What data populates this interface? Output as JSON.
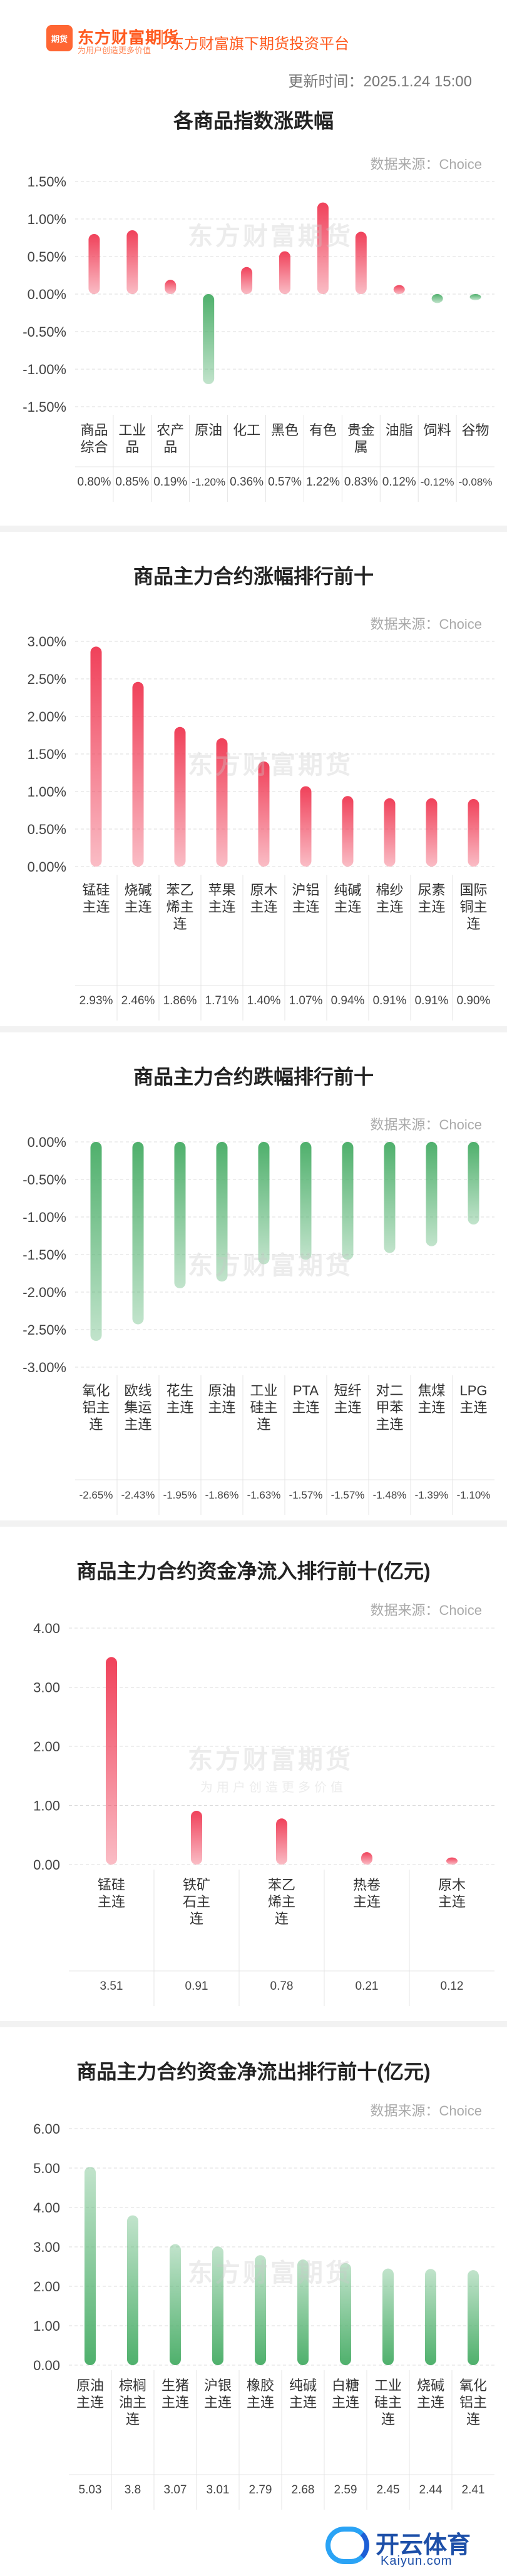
{
  "header": {
    "logo_icon": "东方财富期货 logo",
    "brand_name": "东方财富期货",
    "brand_slogan": "为用户创造更多价值",
    "platform": "东方财富旗下期货投资平台",
    "updated": "更新时间：2025.1.24 15:00"
  },
  "watermark": {
    "main": "东方财富期货",
    "sub": "为用户创造更多价值"
  },
  "footer_logo": {
    "name": "开云体育",
    "domain": "Kaiyun.com",
    "icon": "kaiyun-logo-icon"
  },
  "colors": {
    "up": "#f0415a",
    "down": "#4fb06c",
    "accent": "#ff5a1f"
  },
  "chart_data": [
    {
      "type": "bar",
      "title": "各商品指数涨跌幅",
      "source": "数据来源：Choice",
      "categories": [
        "商品综合",
        "工业品",
        "农产品",
        "原油",
        "化工",
        "黑色",
        "有色",
        "贵金属",
        "油脂",
        "饲料",
        "谷物"
      ],
      "category_lines": [
        [
          "商品",
          "综合"
        ],
        [
          "工业",
          "品"
        ],
        [
          "农产",
          "品"
        ],
        [
          "原油"
        ],
        [
          "化工"
        ],
        [
          "黑色"
        ],
        [
          "有色"
        ],
        [
          "贵金",
          "属"
        ],
        [
          "油脂"
        ],
        [
          "饲料"
        ],
        [
          "谷物"
        ]
      ],
      "values": [
        0.8,
        0.85,
        0.19,
        -1.2,
        0.36,
        0.57,
        1.22,
        0.83,
        0.12,
        -0.12,
        -0.08
      ],
      "value_labels": [
        "0.80%",
        "0.85%",
        "0.19%",
        "-1.20%",
        "0.36%",
        "0.57%",
        "1.22%",
        "0.83%",
        "0.12%",
        "-0.12%",
        "-0.08%"
      ],
      "ylim": [
        -1.5,
        1.5
      ],
      "yticks": [
        1.5,
        1.0,
        0.5,
        0.0,
        -0.5,
        -1.0,
        -1.5
      ],
      "ytick_labels": [
        "1.50%",
        "1.00%",
        "0.50%",
        "0.00%",
        "-0.50%",
        "-1.00%",
        "-1.50%"
      ],
      "grid": true
    },
    {
      "type": "bar",
      "title": "商品主力合约涨幅排行前十",
      "source": "数据来源：Choice",
      "categories": [
        "锰硅主连",
        "烧碱主连",
        "苯乙烯主连",
        "苹果主连",
        "原木主连",
        "沪铝主连",
        "纯碱主连",
        "棉纱主连",
        "尿素主连",
        "国际铜主连"
      ],
      "category_lines": [
        [
          "锰硅",
          "主连"
        ],
        [
          "烧碱",
          "主连"
        ],
        [
          "苯乙",
          "烯主",
          "连"
        ],
        [
          "苹果",
          "主连"
        ],
        [
          "原木",
          "主连"
        ],
        [
          "沪铝",
          "主连"
        ],
        [
          "纯碱",
          "主连"
        ],
        [
          "棉纱",
          "主连"
        ],
        [
          "尿素",
          "主连"
        ],
        [
          "国际",
          "铜主",
          "连"
        ]
      ],
      "values": [
        2.93,
        2.46,
        1.86,
        1.71,
        1.4,
        1.07,
        0.94,
        0.91,
        0.91,
        0.9
      ],
      "value_labels": [
        "2.93%",
        "2.46%",
        "1.86%",
        "1.71%",
        "1.40%",
        "1.07%",
        "0.94%",
        "0.91%",
        "0.91%",
        "0.90%"
      ],
      "ylim": [
        0,
        3.0
      ],
      "yticks": [
        3.0,
        2.5,
        2.0,
        1.5,
        1.0,
        0.5,
        0.0
      ],
      "ytick_labels": [
        "3.00%",
        "2.50%",
        "2.00%",
        "1.50%",
        "1.00%",
        "0.50%",
        "0.00%"
      ],
      "grid": true
    },
    {
      "type": "bar",
      "title": "商品主力合约跌幅排行前十",
      "source": "数据来源：Choice",
      "categories": [
        "氧化铝主连",
        "欧线集运主连",
        "花生主连",
        "原油主连",
        "工业硅主连",
        "PTA主连",
        "短纤主连",
        "对二甲苯主连",
        "焦煤主连",
        "LPG主连"
      ],
      "category_lines": [
        [
          "氧化",
          "铝主",
          "连"
        ],
        [
          "欧线",
          "集运",
          "主连"
        ],
        [
          "花生",
          "主连"
        ],
        [
          "原油",
          "主连"
        ],
        [
          "工业",
          "硅主",
          "连"
        ],
        [
          "PTA",
          "主连"
        ],
        [
          "短纤",
          "主连"
        ],
        [
          "对二",
          "甲苯",
          "主连"
        ],
        [
          "焦煤",
          "主连"
        ],
        [
          "LPG",
          "主连"
        ]
      ],
      "values": [
        -2.65,
        -2.43,
        -1.95,
        -1.86,
        -1.63,
        -1.57,
        -1.57,
        -1.48,
        -1.39,
        -1.1
      ],
      "value_labels": [
        "-2.65%",
        "-2.43%",
        "-1.95%",
        "-1.86%",
        "-1.63%",
        "-1.57%",
        "-1.57%",
        "-1.48%",
        "-1.39%",
        "-1.10%"
      ],
      "ylim": [
        -3.0,
        0
      ],
      "yticks": [
        0.0,
        -0.5,
        -1.0,
        -1.5,
        -2.0,
        -2.5,
        -3.0
      ],
      "ytick_labels": [
        "0.00%",
        "-0.50%",
        "-1.00%",
        "-1.50%",
        "-2.00%",
        "-2.50%",
        "-3.00%"
      ],
      "grid": true
    },
    {
      "type": "bar",
      "title": "商品主力合约资金净流入排行前十(亿元)",
      "source": "数据来源：Choice",
      "categories": [
        "锰硅主连",
        "铁矿石主连",
        "苯乙烯主连",
        "热卷主连",
        "原木主连"
      ],
      "category_lines": [
        [
          "锰硅",
          "主连"
        ],
        [
          "铁矿",
          "石主",
          "连"
        ],
        [
          "苯乙",
          "烯主",
          "连"
        ],
        [
          "热卷",
          "主连"
        ],
        [
          "原木",
          "主连"
        ]
      ],
      "values": [
        3.51,
        0.91,
        0.78,
        0.21,
        0.12
      ],
      "value_labels": [
        "3.51",
        "0.91",
        "0.78",
        "0.21",
        "0.12"
      ],
      "ylim": [
        0,
        4.0
      ],
      "yticks": [
        4.0,
        3.0,
        2.0,
        1.0,
        0.0
      ],
      "ytick_labels": [
        "4.00",
        "3.00",
        "2.00",
        "1.00",
        "0.00"
      ],
      "grid": true
    },
    {
      "type": "bar",
      "title": "商品主力合约资金净流出排行前十(亿元)",
      "source": "数据来源：Choice",
      "categories": [
        "原油主连",
        "棕榈油主连",
        "生猪主连",
        "沪银主连",
        "橡胶主连",
        "纯碱主连",
        "白糖主连",
        "工业硅主连",
        "烧碱主连",
        "氧化铝主连"
      ],
      "category_lines": [
        [
          "原油",
          "主连"
        ],
        [
          "棕榈",
          "油主",
          "连"
        ],
        [
          "生猪",
          "主连"
        ],
        [
          "沪银",
          "主连"
        ],
        [
          "橡胶",
          "主连"
        ],
        [
          "纯碱",
          "主连"
        ],
        [
          "白糖",
          "主连"
        ],
        [
          "工业",
          "硅主",
          "连"
        ],
        [
          "烧碱",
          "主连"
        ],
        [
          "氧化",
          "铝主",
          "连"
        ]
      ],
      "values": [
        5.03,
        3.8,
        3.07,
        3.01,
        2.79,
        2.68,
        2.59,
        2.45,
        2.44,
        2.41
      ],
      "value_labels": [
        "5.03",
        "3.8",
        "3.07",
        "3.01",
        "2.79",
        "2.68",
        "2.59",
        "2.45",
        "2.44",
        "2.41"
      ],
      "ylim": [
        0,
        6.0
      ],
      "yticks": [
        6.0,
        5.0,
        4.0,
        3.0,
        2.0,
        1.0,
        0.0
      ],
      "ytick_labels": [
        "6.00",
        "5.00",
        "4.00",
        "3.00",
        "2.00",
        "1.00",
        "0.00"
      ],
      "grid": true,
      "color": "down"
    }
  ]
}
